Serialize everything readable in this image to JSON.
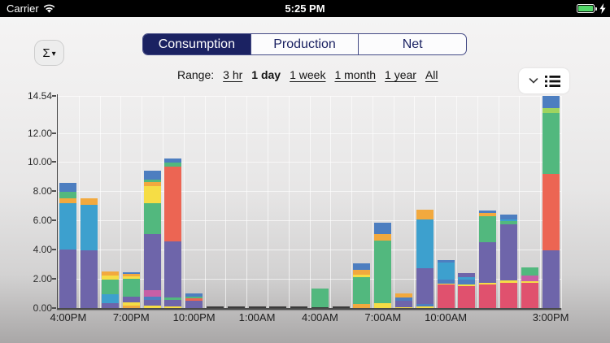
{
  "status_bar": {
    "carrier": "Carrier",
    "time": "5:25 PM"
  },
  "sigma_button": {
    "label": "Σ",
    "caret": "▾"
  },
  "tabs": [
    {
      "label": "Consumption",
      "selected": true
    },
    {
      "label": "Production",
      "selected": false
    },
    {
      "label": "Net",
      "selected": false
    }
  ],
  "range": {
    "label": "Range:",
    "options": [
      {
        "label": "3 hr",
        "selected": false
      },
      {
        "label": "1 day",
        "selected": true
      },
      {
        "label": "1 week",
        "selected": false
      },
      {
        "label": "1 month",
        "selected": false
      },
      {
        "label": "1 year",
        "selected": false
      },
      {
        "label": "All",
        "selected": false
      }
    ]
  },
  "chart_data": {
    "type": "bar",
    "stacked": true,
    "ylim": [
      0,
      14.54
    ],
    "grid": true,
    "y_ticks": [
      {
        "value": 14.54,
        "label": "14.54",
        "grid": true
      },
      {
        "value": 12,
        "label": "12.00",
        "grid": true
      },
      {
        "value": 10,
        "label": "10.00",
        "grid": true
      },
      {
        "value": 8,
        "label": "8.00",
        "grid": true
      },
      {
        "value": 6,
        "label": "6.00",
        "grid": true
      },
      {
        "value": 4,
        "label": "4.00",
        "grid": true
      },
      {
        "value": 2,
        "label": "2.00",
        "grid": true
      },
      {
        "value": 0,
        "label": "0.00",
        "grid": false
      }
    ],
    "x_tick_labels": [
      {
        "index": 0,
        "label": "4:00PM"
      },
      {
        "index": 3,
        "label": "7:00PM"
      },
      {
        "index": 6,
        "label": "10:00PM"
      },
      {
        "index": 9,
        "label": "1:00AM"
      },
      {
        "index": 12,
        "label": "4:00AM"
      },
      {
        "index": 15,
        "label": "7:00AM"
      },
      {
        "index": 18,
        "label": "10:00AM"
      },
      {
        "index": 23,
        "label": "3:00PM"
      }
    ],
    "palette": {
      "purple": "#6e65aa",
      "skyblue": "#3da0ce",
      "green": "#52b87e",
      "yellow": "#f6dd45",
      "orange": "#f2a93e",
      "blue": "#4d7ec0",
      "salmon": "#ec6553",
      "crimson": "#e0516e",
      "magenta": "#c75fa6",
      "lime": "#9fd45f",
      "dark": "#3b3b3b"
    },
    "bars": [
      {
        "hour": "4PM",
        "segments": [
          [
            "purple",
            4.0
          ],
          [
            "skyblue",
            3.2
          ],
          [
            "orange",
            0.3
          ],
          [
            "green",
            0.45
          ],
          [
            "blue",
            0.65
          ]
        ]
      },
      {
        "hour": "5PM",
        "segments": [
          [
            "purple",
            3.95
          ],
          [
            "skyblue",
            3.15
          ],
          [
            "orange",
            0.45
          ]
        ]
      },
      {
        "hour": "6PM",
        "segments": [
          [
            "purple",
            0.35
          ],
          [
            "skyblue",
            0.6
          ],
          [
            "green",
            1.0
          ],
          [
            "yellow",
            0.3
          ],
          [
            "orange",
            0.25
          ]
        ]
      },
      {
        "hour": "7PM",
        "segments": [
          [
            "orange",
            0.18
          ],
          [
            "yellow",
            0.22
          ],
          [
            "purple",
            0.4
          ],
          [
            "green",
            1.2
          ],
          [
            "yellow",
            0.15
          ],
          [
            "orange",
            0.2
          ],
          [
            "blue",
            0.1
          ]
        ]
      },
      {
        "hour": "8PM",
        "segments": [
          [
            "yellow",
            0.15
          ],
          [
            "purple",
            0.4
          ],
          [
            "blue",
            0.25
          ],
          [
            "magenta",
            0.45
          ],
          [
            "purple",
            3.8
          ],
          [
            "green",
            2.15
          ],
          [
            "yellow",
            1.15
          ],
          [
            "orange",
            0.3
          ],
          [
            "green",
            0.15
          ],
          [
            "blue",
            0.6
          ]
        ]
      },
      {
        "hour": "9PM",
        "segments": [
          [
            "yellow",
            0.12
          ],
          [
            "purple",
            0.43
          ],
          [
            "green",
            0.2
          ],
          [
            "purple",
            3.8
          ],
          [
            "salmon",
            5.15
          ],
          [
            "green",
            0.27
          ],
          [
            "blue",
            0.28
          ]
        ]
      },
      {
        "hour": "10PM",
        "segments": [
          [
            "purple",
            0.5
          ],
          [
            "salmon",
            0.15
          ],
          [
            "green",
            0.12
          ],
          [
            "blue",
            0.25
          ]
        ]
      },
      {
        "hour": "11PM",
        "segments": [
          [
            "dark",
            0.12
          ]
        ]
      },
      {
        "hour": "12AM",
        "segments": [
          [
            "dark",
            0.12
          ]
        ]
      },
      {
        "hour": "1AM",
        "segments": [
          [
            "dark",
            0.12
          ]
        ]
      },
      {
        "hour": "2AM",
        "segments": [
          [
            "dark",
            0.12
          ]
        ]
      },
      {
        "hour": "3AM",
        "segments": [
          [
            "dark",
            0.12
          ]
        ]
      },
      {
        "hour": "4AM",
        "segments": [
          [
            "dark",
            0.08
          ],
          [
            "green",
            1.28
          ]
        ]
      },
      {
        "hour": "5AM",
        "segments": [
          [
            "dark",
            0.12
          ]
        ]
      },
      {
        "hour": "6AM",
        "segments": [
          [
            "orange",
            0.27
          ],
          [
            "green",
            1.83
          ],
          [
            "yellow",
            0.16
          ],
          [
            "orange",
            0.36
          ],
          [
            "blue",
            0.44
          ]
        ]
      },
      {
        "hour": "7AM",
        "segments": [
          [
            "yellow",
            0.35
          ],
          [
            "green",
            4.25
          ],
          [
            "orange",
            0.45
          ],
          [
            "blue",
            0.8
          ]
        ]
      },
      {
        "hour": "8AM",
        "segments": [
          [
            "yellow",
            0.08
          ],
          [
            "purple",
            0.45
          ],
          [
            "blue",
            0.22
          ],
          [
            "orange",
            0.25
          ]
        ]
      },
      {
        "hour": "9AM",
        "segments": [
          [
            "yellow",
            0.1
          ],
          [
            "blue",
            0.2
          ],
          [
            "purple",
            2.45
          ],
          [
            "skyblue",
            3.35
          ],
          [
            "orange",
            0.65
          ]
        ]
      },
      {
        "hour": "10AM",
        "segments": [
          [
            "crimson",
            1.6
          ],
          [
            "yellow",
            0.08
          ],
          [
            "blue",
            0.25
          ],
          [
            "skyblue",
            1.17
          ],
          [
            "blue",
            0.2
          ]
        ]
      },
      {
        "hour": "11AM",
        "segments": [
          [
            "crimson",
            1.5
          ],
          [
            "yellow",
            0.1
          ],
          [
            "blue",
            0.35
          ],
          [
            "skyblue",
            0.15
          ],
          [
            "purple",
            0.3
          ]
        ]
      },
      {
        "hour": "12PM",
        "segments": [
          [
            "crimson",
            1.6
          ],
          [
            "yellow",
            0.12
          ],
          [
            "purple",
            2.78
          ],
          [
            "green",
            1.8
          ],
          [
            "orange",
            0.2
          ],
          [
            "blue",
            0.2
          ]
        ]
      },
      {
        "hour": "1PM",
        "segments": [
          [
            "crimson",
            1.75
          ],
          [
            "yellow",
            0.15
          ],
          [
            "purple",
            3.85
          ],
          [
            "green",
            0.2
          ],
          [
            "skyblue",
            0.15
          ],
          [
            "blue",
            0.3
          ]
        ]
      },
      {
        "hour": "2PM",
        "segments": [
          [
            "crimson",
            1.7
          ],
          [
            "yellow",
            0.15
          ],
          [
            "magenta",
            0.4
          ],
          [
            "green",
            0.55
          ]
        ]
      },
      {
        "hour": "3PM",
        "segments": [
          [
            "purple",
            3.95
          ],
          [
            "salmon",
            5.25
          ],
          [
            "green",
            4.17
          ],
          [
            "lime",
            0.33
          ],
          [
            "blue",
            0.84
          ]
        ]
      }
    ]
  }
}
